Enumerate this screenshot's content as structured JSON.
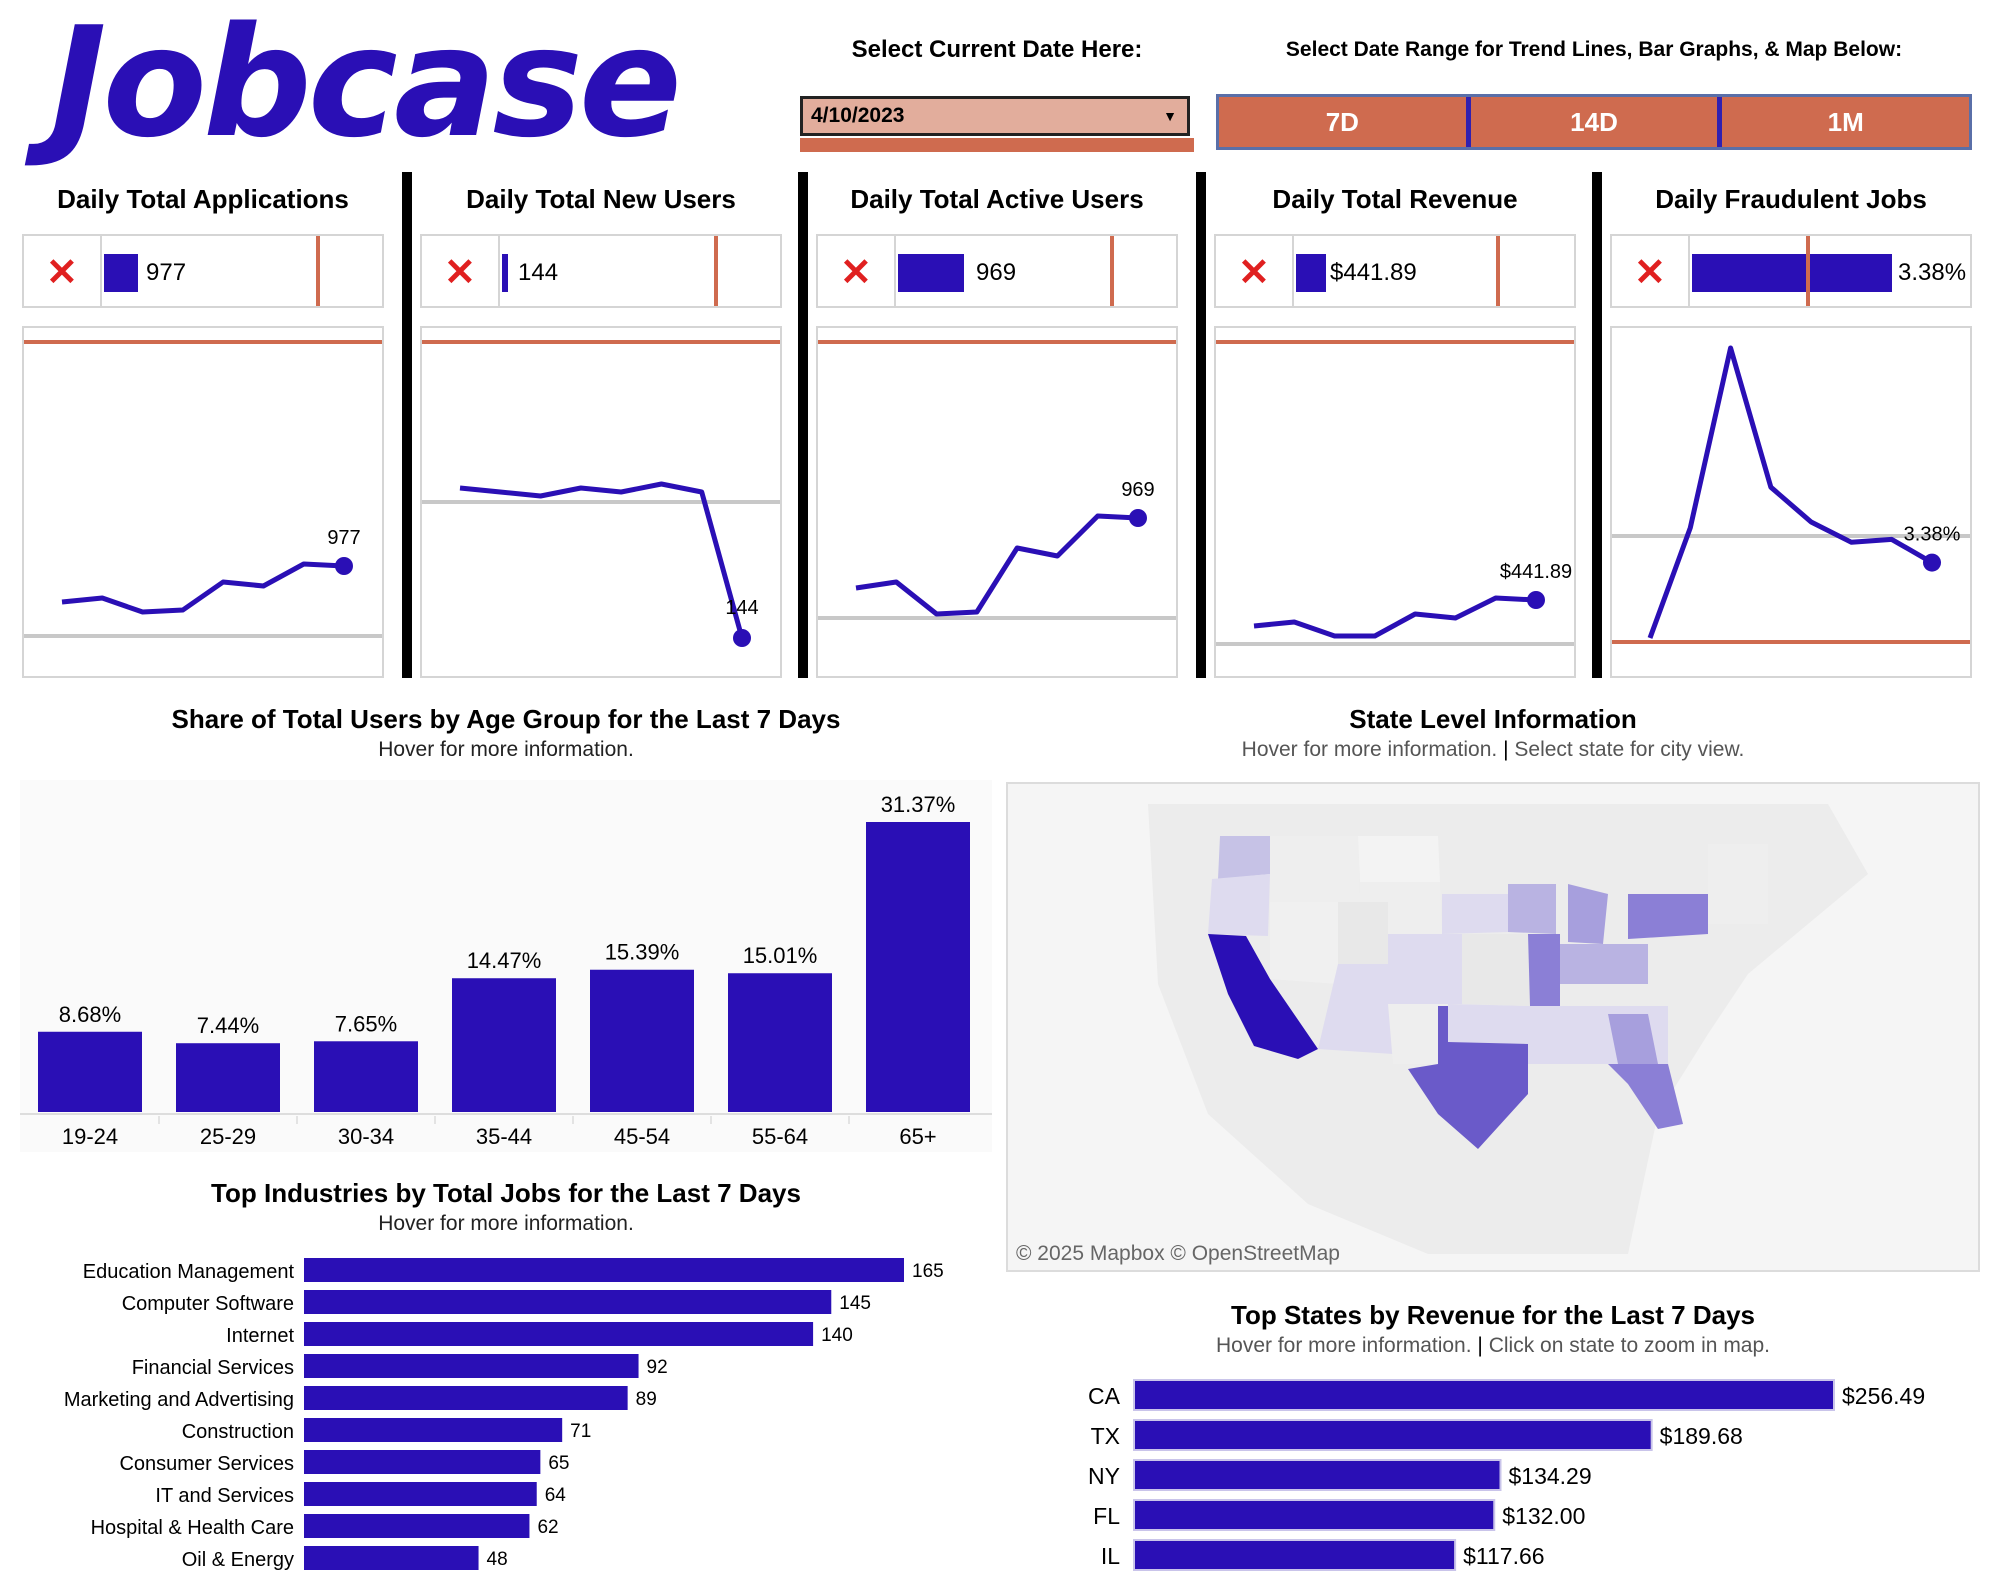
{
  "logo": {
    "text": "Jobcase"
  },
  "controls": {
    "date_label": "Select Current Date Here:",
    "date_value": "4/10/2023",
    "range_label": "Select Date Range for Trend Lines, Bar Graphs, & Map Below:",
    "range_options": [
      "7D",
      "14D",
      "1M"
    ]
  },
  "kpis": [
    {
      "title": "Daily Total Applications",
      "value": "977"
    },
    {
      "title": "Daily Total New Users",
      "value": "144"
    },
    {
      "title": "Daily Total Active Users",
      "value": "969"
    },
    {
      "title": "Daily Total Revenue",
      "value": "$441.89"
    },
    {
      "title": "Daily Fraudulent Jobs",
      "value": "3.38%"
    }
  ],
  "colors": {
    "brand": "#2a0fb5",
    "accent": "#cf6b4f",
    "status_bad": "#e02020",
    "reference": "#c8c8c8"
  },
  "age_section": {
    "title": "Share of Total Users by Age Group for the Last 7 Days",
    "subtitle": "Hover for more information."
  },
  "industry_section": {
    "title": "Top Industries by Total Jobs for the Last 7 Days",
    "subtitle": "Hover for more information."
  },
  "state_section": {
    "title": "State Level Information",
    "subtitle_a": "Hover for more information.",
    "subtitle_b": "Select state for city view."
  },
  "map": {
    "attribution": "© 2025 Mapbox  © OpenStreetMap"
  },
  "revenue_section": {
    "title": "Top States by Revenue for the Last 7 Days",
    "subtitle_a": "Hover for more information.",
    "subtitle_b": "Click on state to zoom in map."
  },
  "chart_data": [
    {
      "type": "line",
      "label": "977",
      "values": [
        0.18,
        0.2,
        0.13,
        0.14,
        0.28,
        0.26,
        0.37,
        0.36
      ]
    },
    {
      "type": "line",
      "label": "144",
      "values": [
        0.75,
        0.73,
        0.71,
        0.75,
        0.73,
        0.77,
        0.73,
        0.0
      ]
    },
    {
      "type": "line",
      "label": "969",
      "values": [
        0.25,
        0.28,
        0.12,
        0.13,
        0.45,
        0.41,
        0.61,
        0.6
      ]
    },
    {
      "type": "line",
      "label": "$441.89",
      "values": [
        0.06,
        0.08,
        0.01,
        0.01,
        0.12,
        0.1,
        0.2,
        0.19
      ]
    },
    {
      "type": "line",
      "label": "3.38%",
      "values": [
        0.0,
        0.38,
        1.0,
        0.52,
        0.4,
        0.33,
        0.34,
        0.26
      ]
    },
    {
      "type": "bar",
      "categories": [
        "19-24",
        "25-29",
        "30-34",
        "35-44",
        "45-54",
        "55-64",
        "65+"
      ],
      "values": [
        8.68,
        7.44,
        7.65,
        14.47,
        15.39,
        15.01,
        31.37
      ],
      "labels": [
        "8.68%",
        "7.44%",
        "7.65%",
        "14.47%",
        "15.39%",
        "15.01%",
        "31.37%"
      ]
    },
    {
      "type": "bar",
      "orientation": "horizontal",
      "categories": [
        "Education Management",
        "Computer Software",
        "Internet",
        "Financial Services",
        "Marketing and Advertising",
        "Construction",
        "Consumer Services",
        "IT and Services",
        "Hospital & Health Care",
        "Oil & Energy"
      ],
      "values": [
        165,
        145,
        140,
        92,
        89,
        71,
        65,
        64,
        62,
        48
      ]
    },
    {
      "type": "bar",
      "orientation": "horizontal",
      "categories": [
        "CA",
        "TX",
        "NY",
        "FL",
        "IL"
      ],
      "values": [
        256.49,
        189.68,
        134.29,
        132.0,
        117.66
      ],
      "labels": [
        "$256.49",
        "$189.68",
        "$134.29",
        "$132.00",
        "$117.66"
      ]
    }
  ]
}
